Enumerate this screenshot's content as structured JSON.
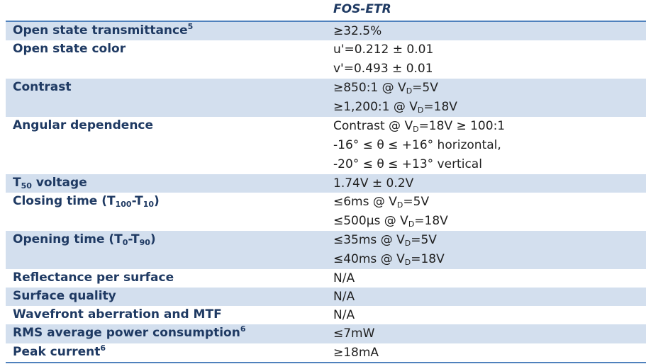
{
  "header": {
    "column_title": "FOS-ETR"
  },
  "rows": [
    {
      "label": "Open state transmittance",
      "label_sup": "5",
      "values": [
        "≥32.5%"
      ]
    },
    {
      "label": "Open state color",
      "values": [
        "u'=0.212 ± 0.01",
        "v'=0.493 ± 0.01"
      ]
    },
    {
      "label": "Contrast",
      "values": [
        {
          "pre": "≥850:1 @ V",
          "sub": "D",
          "post": "=5V"
        },
        {
          "pre": "≥1,200:1 @ V",
          "sub": "D",
          "post": "=18V"
        }
      ]
    },
    {
      "label": "Angular dependence",
      "values": [
        {
          "pre": "Contrast @ V",
          "sub": "D",
          "post": "=18V ≥ 100:1"
        },
        "-16° ≤ θ ≤ +16° horizontal,",
        "-20° ≤ θ ≤ +13° vertical"
      ]
    },
    {
      "label_pre": "T",
      "label_sub": "50",
      "label_post": " voltage",
      "values": [
        "1.74V ± 0.2V"
      ]
    },
    {
      "label_pre": "Closing time (T",
      "label_sub": "100",
      "label_mid": "-T",
      "label_sub2": "10",
      "label_post": ")",
      "values": [
        {
          "pre": "≤6ms @ V",
          "sub": "D",
          "post": "=5V"
        },
        {
          "pre": "≤500μs @ V",
          "sub": "D",
          "post": "=18V"
        }
      ]
    },
    {
      "label_pre": "Opening time (T",
      "label_sub": "0",
      "label_mid": "-T",
      "label_sub2": "90",
      "label_post": ")",
      "values": [
        {
          "pre": "≤35ms @ V",
          "sub": "D",
          "post": "=5V"
        },
        {
          "pre": "≤40ms @ V",
          "sub": "D",
          "post": "=18V"
        }
      ]
    },
    {
      "label": "Reflectance per surface",
      "values": [
        "N/A"
      ]
    },
    {
      "label": "Surface quality",
      "values": [
        "N/A"
      ]
    },
    {
      "label": "Wavefront aberration and MTF",
      "values": [
        "N/A"
      ]
    },
    {
      "label": "RMS average power consumption",
      "label_sup": "6",
      "values": [
        "≤7mW"
      ]
    },
    {
      "label": "Peak current",
      "label_sup": "6",
      "values": [
        "≥18mA"
      ]
    }
  ],
  "colors": {
    "shade": "#d3dfee",
    "rule": "#4f81bd",
    "label_text": "#1f3a63"
  }
}
